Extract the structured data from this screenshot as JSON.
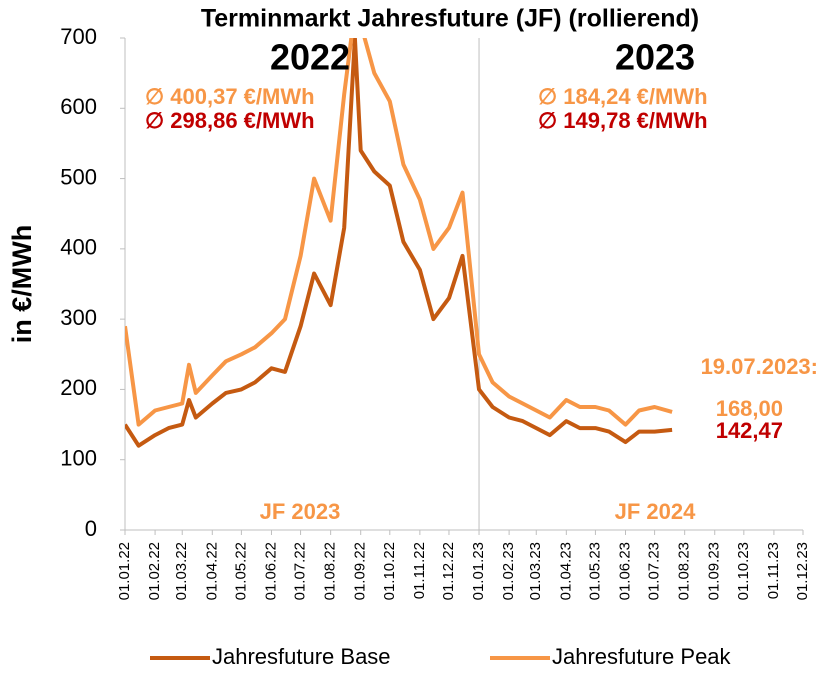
{
  "chart_data": {
    "type": "line",
    "title": "Terminmarkt Jahresfuture (JF) (rollierend)",
    "y_label": "in €/MWh",
    "x": [
      "2022-01-01",
      "2022-01-15",
      "2022-02-01",
      "2022-02-15",
      "2022-03-01",
      "2022-03-08",
      "2022-03-15",
      "2022-04-01",
      "2022-04-15",
      "2022-05-01",
      "2022-05-15",
      "2022-06-01",
      "2022-06-15",
      "2022-07-01",
      "2022-07-15",
      "2022-08-01",
      "2022-08-15",
      "2022-08-26",
      "2022-09-01",
      "2022-09-15",
      "2022-10-01",
      "2022-10-15",
      "2022-11-01",
      "2022-11-15",
      "2022-12-01",
      "2022-12-15",
      "2023-01-01",
      "2023-01-15",
      "2023-02-01",
      "2023-02-15",
      "2023-03-01",
      "2023-03-15",
      "2023-04-01",
      "2023-04-15",
      "2023-05-01",
      "2023-05-15",
      "2023-06-01",
      "2023-06-15",
      "2023-07-01",
      "2023-07-19"
    ],
    "series": [
      {
        "name": "Jahresfuture Base",
        "color": "#c55a11",
        "values": [
          150,
          120,
          135,
          145,
          150,
          185,
          160,
          180,
          195,
          200,
          210,
          230,
          225,
          290,
          365,
          320,
          430,
          700,
          540,
          510,
          490,
          410,
          370,
          300,
          330,
          390,
          200,
          175,
          160,
          155,
          145,
          135,
          155,
          145,
          145,
          140,
          125,
          140,
          140,
          142.47
        ]
      },
      {
        "name": "Jahresfuture Peak",
        "color": "#f79646",
        "values": [
          290,
          150,
          170,
          175,
          180,
          235,
          195,
          220,
          240,
          250,
          260,
          280,
          300,
          390,
          500,
          440,
          620,
          740,
          720,
          650,
          610,
          520,
          470,
          400,
          430,
          480,
          250,
          210,
          190,
          180,
          170,
          160,
          185,
          175,
          175,
          170,
          150,
          170,
          175,
          168
        ]
      }
    ],
    "xlim": [
      "2022-01-01",
      "2023-12-01"
    ],
    "xticks": [
      {
        "value": "2022-01-01",
        "label": "01.01.22"
      },
      {
        "value": "2022-02-01",
        "label": "01.02.22"
      },
      {
        "value": "2022-03-01",
        "label": "01.03.22"
      },
      {
        "value": "2022-04-01",
        "label": "01.04.22"
      },
      {
        "value": "2022-05-01",
        "label": "01.05.22"
      },
      {
        "value": "2022-06-01",
        "label": "01.06.22"
      },
      {
        "value": "2022-07-01",
        "label": "01.07.22"
      },
      {
        "value": "2022-08-01",
        "label": "01.08.22"
      },
      {
        "value": "2022-09-01",
        "label": "01.09.22"
      },
      {
        "value": "2022-10-01",
        "label": "01.10.22"
      },
      {
        "value": "2022-11-01",
        "label": "01.11.22"
      },
      {
        "value": "2022-12-01",
        "label": "01.12.22"
      },
      {
        "value": "2023-01-01",
        "label": "01.01.23"
      },
      {
        "value": "2023-02-01",
        "label": "01.02.23"
      },
      {
        "value": "2023-03-01",
        "label": "01.03.23"
      },
      {
        "value": "2023-04-01",
        "label": "01.04.23"
      },
      {
        "value": "2023-05-01",
        "label": "01.05.23"
      },
      {
        "value": "2023-06-01",
        "label": "01.06.23"
      },
      {
        "value": "2023-07-01",
        "label": "01.07.23"
      },
      {
        "value": "2023-08-01",
        "label": "01.08.23"
      },
      {
        "value": "2023-09-01",
        "label": "01.09.23"
      },
      {
        "value": "2023-10-01",
        "label": "01.10.23"
      },
      {
        "value": "2023-11-01",
        "label": "01.11.23"
      },
      {
        "value": "2023-12-01",
        "label": "01.12.23"
      }
    ],
    "ylim": [
      0,
      700
    ],
    "yticks": [
      0,
      100,
      200,
      300,
      400,
      500,
      600,
      700
    ],
    "legend": "bottom",
    "annotations": [
      {
        "text": "2022",
        "color": "#000000"
      },
      {
        "text": "2023",
        "color": "#000000"
      },
      {
        "text": "∅ 400,37 €/MWh",
        "color": "#f79646"
      },
      {
        "text": "∅ 298,86 €/MWh",
        "color": "#c00000"
      },
      {
        "text": "∅ 184,24 €/MWh",
        "color": "#f79646"
      },
      {
        "text": "∅ 149,78 €/MWh",
        "color": "#c00000"
      },
      {
        "text": "19.07.2023:",
        "color": "#f79646"
      },
      {
        "text": "168,00",
        "color": "#f79646"
      },
      {
        "text": "142,47",
        "color": "#c00000"
      },
      {
        "text": "JF 2023",
        "color": "#f79646"
      },
      {
        "text": "JF 2024",
        "color": "#f79646"
      }
    ]
  }
}
